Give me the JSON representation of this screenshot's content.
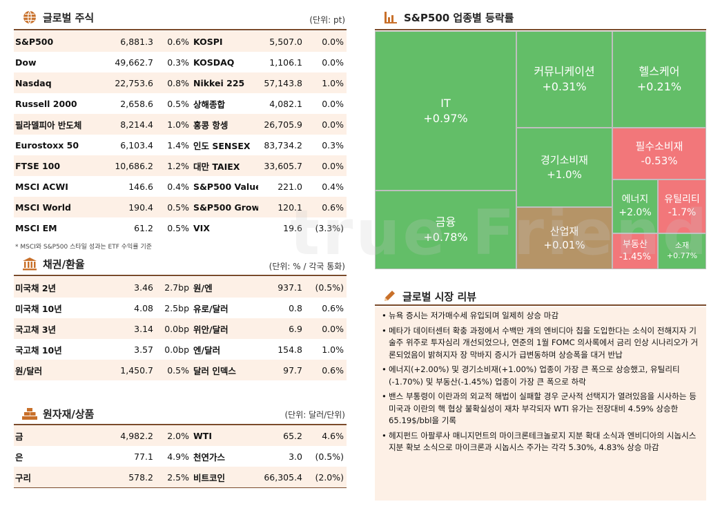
{
  "global_stocks": {
    "title": "글로벌 주식",
    "unit": "(단위: pt)",
    "rows": [
      {
        "name": "S&P500",
        "value": "6,881.3",
        "change": "0.6%",
        "name2": "KOSPI",
        "value2": "5,507.0",
        "change2": "0.0%"
      },
      {
        "name": "Dow",
        "value": "49,662.7",
        "change": "0.3%",
        "name2": "KOSDAQ",
        "value2": "1,106.1",
        "change2": "0.0%"
      },
      {
        "name": "Nasdaq",
        "value": "22,753.6",
        "change": "0.8%",
        "name2": "Nikkei 225",
        "value2": "57,143.8",
        "change2": "1.0%"
      },
      {
        "name": "Russell 2000",
        "value": "2,658.6",
        "change": "0.5%",
        "name2": "상해종합",
        "value2": "4,082.1",
        "change2": "0.0%"
      },
      {
        "name": "필라델피아 반도체",
        "value": "8,214.4",
        "change": "1.0%",
        "name2": "홍콩 항셍",
        "value2": "26,705.9",
        "change2": "0.0%"
      },
      {
        "name": "Eurostoxx 50",
        "value": "6,103.4",
        "change": "1.4%",
        "name2": "인도 SENSEX",
        "value2": "83,734.2",
        "change2": "0.3%"
      },
      {
        "name": "FTSE 100",
        "value": "10,686.2",
        "change": "1.2%",
        "name2": "대만 TAIEX",
        "value2": "33,605.7",
        "change2": "0.0%"
      },
      {
        "name": "MSCI ACWI",
        "value": "146.6",
        "change": "0.4%",
        "name2": "S&P500 Value",
        "value2": "221.0",
        "change2": "0.4%"
      },
      {
        "name": "MSCI World",
        "value": "190.4",
        "change": "0.5%",
        "name2": "S&P500 Growth",
        "value2": "120.1",
        "change2": "0.6%"
      },
      {
        "name": "MSCI EM",
        "value": "61.2",
        "change": "0.5%",
        "name2": "VIX",
        "value2": "19.6",
        "change2": "(3.3%)"
      }
    ],
    "note": "* MSCI와 S&P500 스타일 성과는 ETF 수익률 기준"
  },
  "bonds_fx": {
    "title": "채권/환율",
    "unit": "(단위: % / 각국 통화)",
    "rows": [
      {
        "name": "미국채 2년",
        "value": "3.46",
        "change": "2.7bp",
        "name2": "원/엔",
        "value2": "937.1",
        "change2": "(0.5%)"
      },
      {
        "name": "미국채 10년",
        "value": "4.08",
        "change": "2.5bp",
        "name2": "유로/달러",
        "value2": "0.8",
        "change2": "0.6%"
      },
      {
        "name": "국고채 3년",
        "value": "3.14",
        "change": "0.0bp",
        "name2": "위안/달러",
        "value2": "6.9",
        "change2": "0.0%"
      },
      {
        "name": "국고채 10년",
        "value": "3.57",
        "change": "0.0bp",
        "name2": "엔/달러",
        "value2": "154.8",
        "change2": "1.0%"
      },
      {
        "name": "원/달러",
        "value": "1,450.7",
        "change": "0.5%",
        "name2": "달러 인덱스",
        "value2": "97.7",
        "change2": "0.6%"
      }
    ]
  },
  "commodities": {
    "title": "원자재/상품",
    "unit": "(단위: 달러/단위)",
    "rows": [
      {
        "name": "금",
        "value": "4,982.2",
        "change": "2.0%",
        "name2": "WTI",
        "value2": "65.2",
        "change2": "4.6%"
      },
      {
        "name": "은",
        "value": "77.1",
        "change": "4.9%",
        "name2": "천연가스",
        "value2": "3.0",
        "change2": "(0.5%)"
      },
      {
        "name": "구리",
        "value": "578.2",
        "change": "2.5%",
        "name2": "비트코인",
        "value2": "66,305.4",
        "change2": "(2.0%)"
      }
    ]
  },
  "sector_map": {
    "title": "S&P500 업종별 등락률",
    "tiles": [
      {
        "name": "IT",
        "pct": "+0.97%",
        "value": 0.97
      },
      {
        "name": "커뮤니케이션",
        "pct": "+0.31%",
        "value": 0.31
      },
      {
        "name": "헬스케어",
        "pct": "+0.21%",
        "value": 0.21
      },
      {
        "name": "경기소비재",
        "pct": "+1.0%",
        "value": 1.0
      },
      {
        "name": "필수소비재",
        "pct": "-0.53%",
        "value": -0.53
      },
      {
        "name": "금융",
        "pct": "+0.78%",
        "value": 0.78
      },
      {
        "name": "에너지",
        "pct": "+2.0%",
        "value": 2.0
      },
      {
        "name": "유틸리티",
        "pct": "-1.7%",
        "value": -1.7
      },
      {
        "name": "산업재",
        "pct": "+0.01%",
        "value": 0.01
      },
      {
        "name": "부동산",
        "pct": "-1.45%",
        "value": -1.45
      },
      {
        "name": "소재",
        "pct": "+0.77%",
        "value": 0.77
      }
    ],
    "colors": {
      "positive": "#63be68",
      "flat": "#b59467",
      "negative": "#f2777a"
    }
  },
  "market_review": {
    "title": "글로벌 시장 리뷰",
    "items": [
      "뉴욕 증시는 저가매수세 유입되며 일제히 상승 마감",
      "메타가 데이터센터 확충 과정에서 수백만 개의 엔비디아 칩을 도입한다는 소식이 전해지자 기술주 위주로 투자심리 개선되었으나, 연준의 1월 FOMC 의사록에서 금리 인상 시나리오가 거론되었음이 밝혀지자 장 막바지 증시가 급변동하며 상승폭을 대거 반납",
      "에너지(+2.00%) 및 경기소비재(+1.00%) 업종이 가장 큰 폭으로 상승했고, 유틸리티(-1.70%) 및 부동산(-1.45%) 업종이 가장 큰 폭으로 하락",
      "밴스 부통령이 이란과의 외교적 해법이 실패할 경우 군사적 선택지가 열려있음을 시사하는 등 미국과 이란의 핵 협상 불확실성이 재차 부각되자 WTI 유가는 전장대비 4.59% 상승한 65.19$/bbl을 기록",
      "헤지펀드 아팔루사 매니지먼트의 마이크론테크놀로지 지분 확대 소식과 엔비디아의 시놉시스 지분 확보 소식으로 마이크론과 시놉시스 주가는 각각 5.30%, 4.83% 상승 마감"
    ]
  },
  "watermark": "true Friend",
  "accent_color": "#c8702a"
}
